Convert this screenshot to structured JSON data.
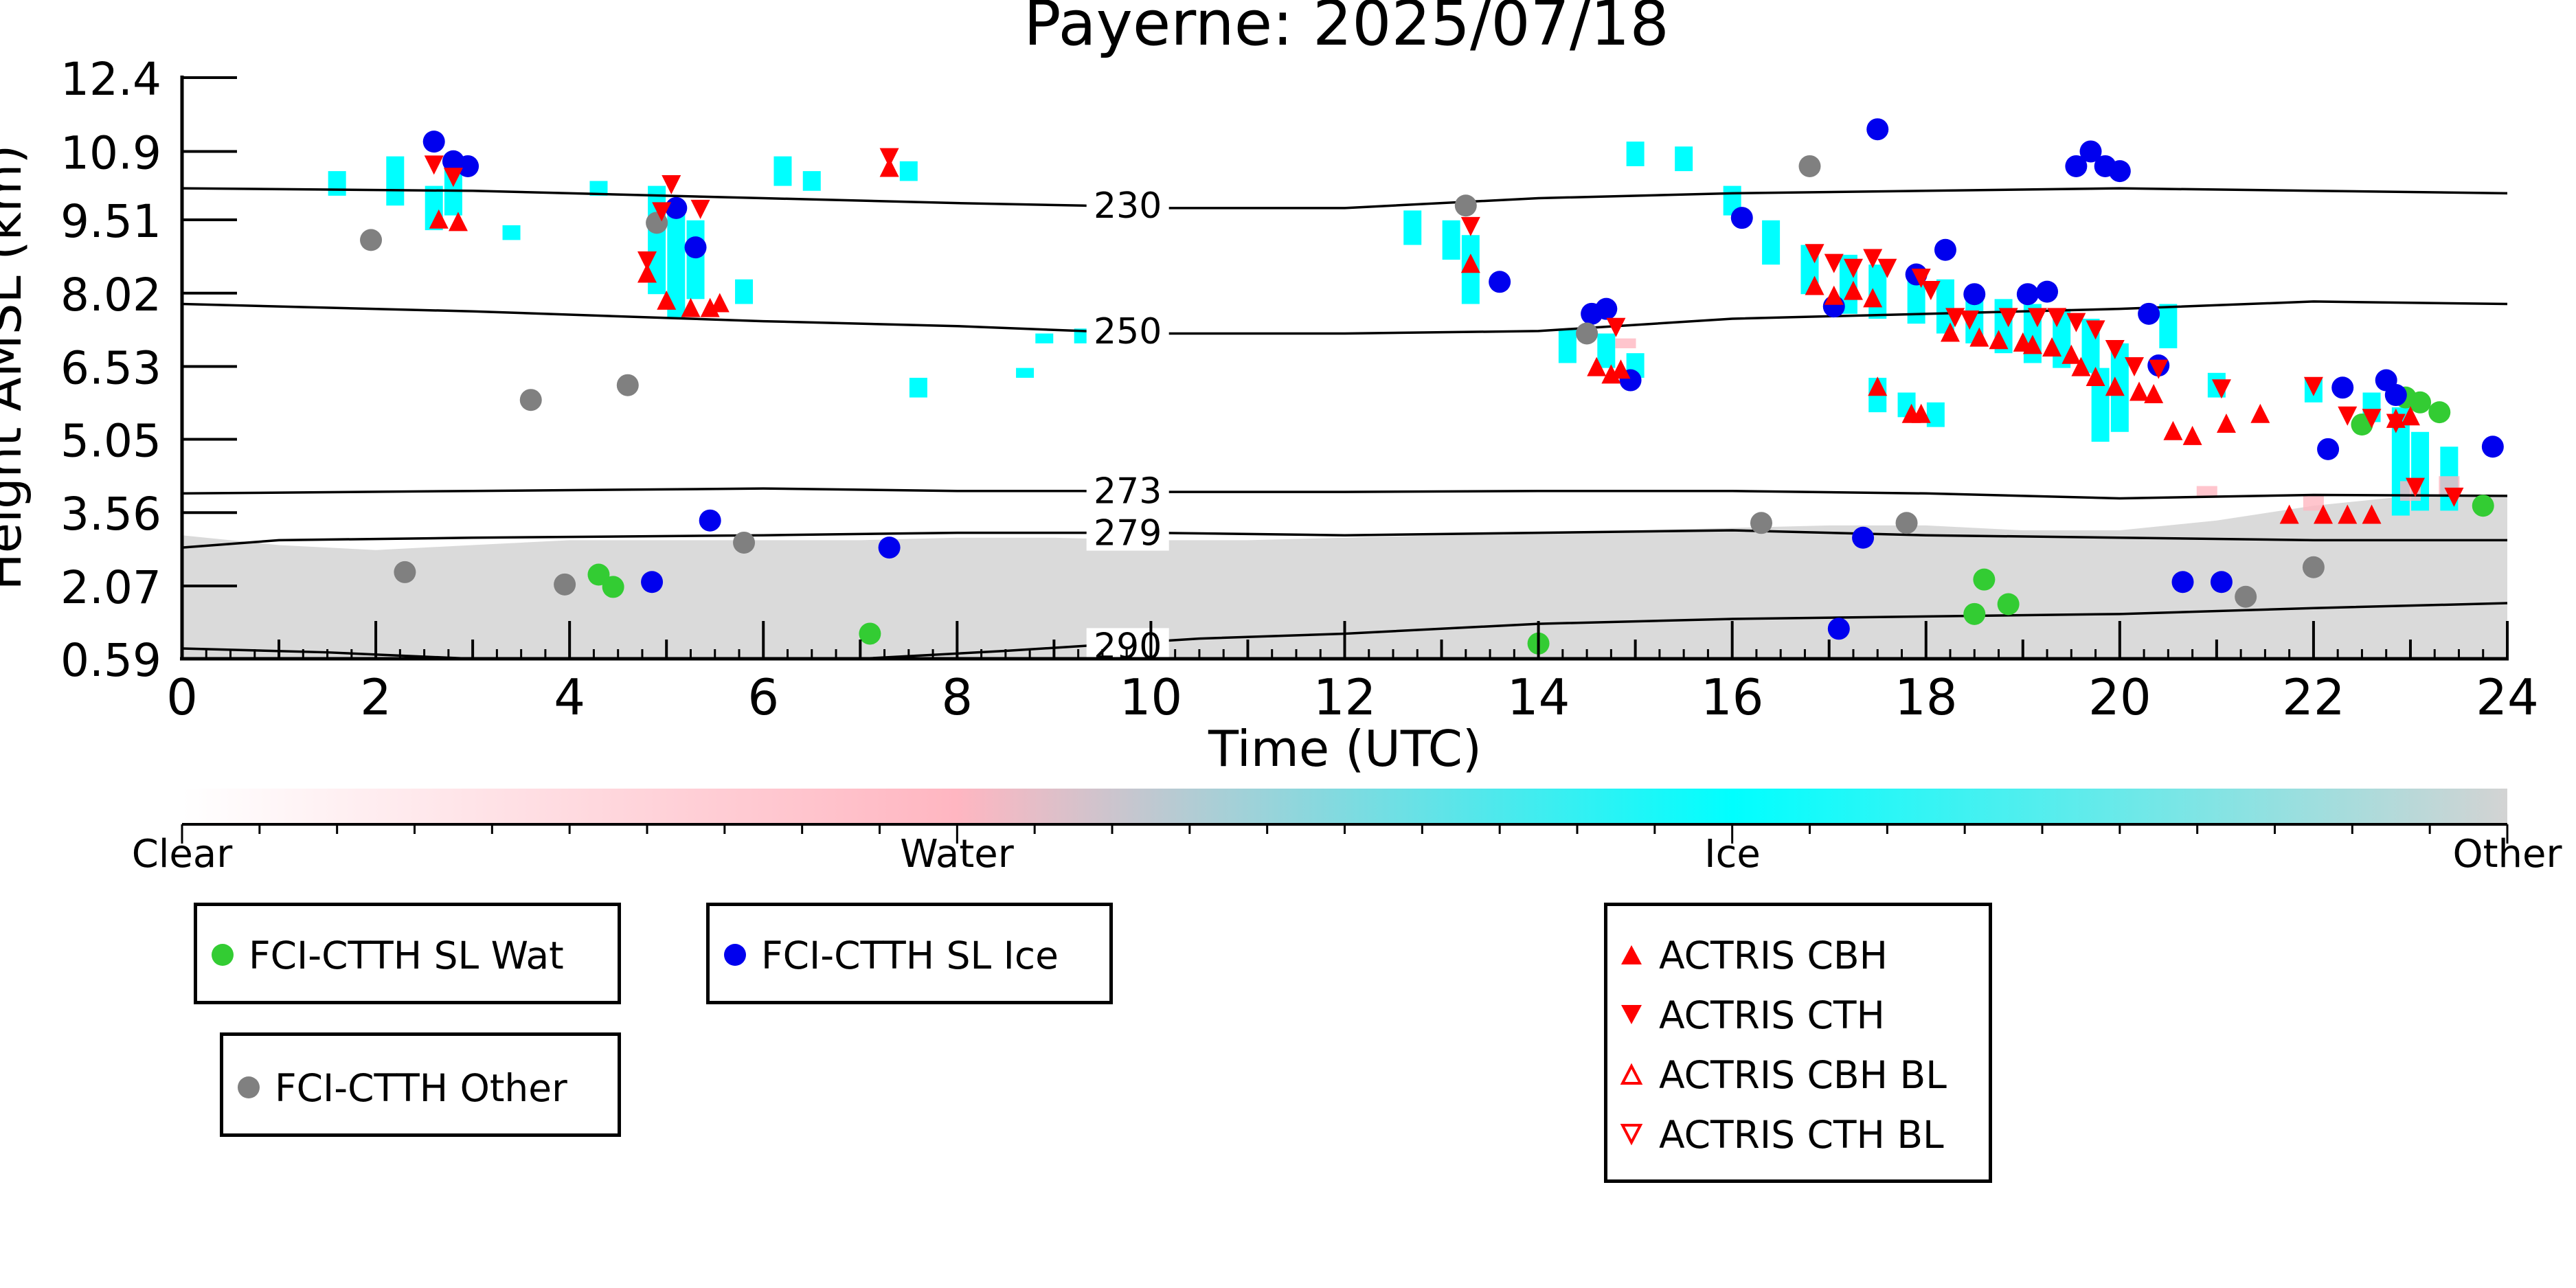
{
  "chart_data": {
    "type": "scatter",
    "title": "Payerne: 2025/07/18",
    "xlabel": "Time (UTC)",
    "ylabel": "Height AMSL (km)",
    "xlim": [
      0,
      24
    ],
    "ylim": [
      0.59,
      12.4
    ],
    "x_ticks": [
      "0",
      "2",
      "4",
      "6",
      "8",
      "10",
      "12",
      "14",
      "16",
      "18",
      "20",
      "22",
      "24"
    ],
    "y_ticks": [
      "12.4",
      "10.9",
      "9.51",
      "8.02",
      "6.53",
      "5.05",
      "3.56",
      "2.07",
      "0.59"
    ],
    "y_tick_values": [
      12.4,
      10.9,
      9.51,
      8.02,
      6.53,
      5.05,
      3.56,
      2.07,
      0.59
    ],
    "colorbar": {
      "labels": [
        "Clear",
        "Water",
        "Ice",
        "Other"
      ],
      "colors": [
        "#ffffff",
        "#ffb6c1",
        "#00ffff",
        "#d3d3d3"
      ]
    },
    "isotherms": [
      {
        "label": "230",
        "label_x": 9.3,
        "points": [
          [
            0,
            10.15
          ],
          [
            3,
            10.1
          ],
          [
            6,
            9.95
          ],
          [
            8,
            9.85
          ],
          [
            9.3,
            9.8
          ],
          [
            10,
            9.75
          ],
          [
            12,
            9.75
          ],
          [
            14,
            9.95
          ],
          [
            16,
            10.05
          ],
          [
            18,
            10.1
          ],
          [
            20,
            10.15
          ],
          [
            22,
            10.1
          ],
          [
            24,
            10.05
          ]
        ]
      },
      {
        "label": "250",
        "label_x": 9.3,
        "points": [
          [
            0,
            7.8
          ],
          [
            3,
            7.65
          ],
          [
            6,
            7.45
          ],
          [
            8,
            7.35
          ],
          [
            9.3,
            7.25
          ],
          [
            10,
            7.2
          ],
          [
            12,
            7.2
          ],
          [
            14,
            7.25
          ],
          [
            16,
            7.5
          ],
          [
            18,
            7.6
          ],
          [
            20,
            7.7
          ],
          [
            22,
            7.85
          ],
          [
            24,
            7.8
          ]
        ]
      },
      {
        "label": "273",
        "label_x": 9.3,
        "points": [
          [
            0,
            3.95
          ],
          [
            3,
            4.0
          ],
          [
            6,
            4.05
          ],
          [
            8,
            4.0
          ],
          [
            9.3,
            4.0
          ],
          [
            10,
            3.98
          ],
          [
            12,
            3.98
          ],
          [
            14,
            4.0
          ],
          [
            16,
            4.0
          ],
          [
            18,
            3.95
          ],
          [
            20,
            3.85
          ],
          [
            22,
            3.92
          ],
          [
            24,
            3.9
          ]
        ]
      },
      {
        "label": "279",
        "label_x": 9.3,
        "points": [
          [
            0,
            2.85
          ],
          [
            1,
            3.0
          ],
          [
            3,
            3.05
          ],
          [
            6,
            3.1
          ],
          [
            8,
            3.15
          ],
          [
            9.3,
            3.15
          ],
          [
            10,
            3.15
          ],
          [
            12,
            3.1
          ],
          [
            14,
            3.15
          ],
          [
            16,
            3.2
          ],
          [
            18,
            3.1
          ],
          [
            20,
            3.05
          ],
          [
            22,
            3.0
          ],
          [
            24,
            3.0
          ]
        ]
      },
      {
        "label": "290",
        "label_x": 9.3,
        "points": [
          [
            0,
            0.8
          ],
          [
            1.5,
            0.72
          ],
          [
            3,
            0.59
          ],
          [
            5,
            0.59
          ],
          [
            7,
            0.59
          ],
          [
            8.5,
            0.75
          ],
          [
            9.3,
            0.85
          ],
          [
            10.5,
            1.0
          ],
          [
            12,
            1.1
          ],
          [
            14,
            1.3
          ],
          [
            16,
            1.4
          ],
          [
            18,
            1.45
          ],
          [
            20,
            1.5
          ],
          [
            22,
            1.62
          ],
          [
            24,
            1.72
          ]
        ]
      }
    ],
    "radar": {
      "ice": [
        [
          1.6,
          10.5,
          10.0
        ],
        [
          2.2,
          10.8,
          9.8
        ],
        [
          2.8,
          10.6,
          9.6
        ],
        [
          2.6,
          10.2,
          9.3
        ],
        [
          3.4,
          9.4,
          9.1
        ],
        [
          4.3,
          10.3,
          10.0
        ],
        [
          4.9,
          10.2,
          8.0
        ],
        [
          5.1,
          9.8,
          7.5
        ],
        [
          5.3,
          9.5,
          7.9
        ],
        [
          5.8,
          8.3,
          7.8
        ],
        [
          6.2,
          10.8,
          10.2
        ],
        [
          6.5,
          10.5,
          10.1
        ],
        [
          7.5,
          10.7,
          10.3
        ],
        [
          7.6,
          6.3,
          5.9
        ],
        [
          8.7,
          6.5,
          6.3
        ],
        [
          8.9,
          7.2,
          7.0
        ],
        [
          9.3,
          7.3,
          7.0
        ],
        [
          12.7,
          9.7,
          9.0
        ],
        [
          13.1,
          9.5,
          8.7
        ],
        [
          13.3,
          9.2,
          7.8
        ],
        [
          14.3,
          7.3,
          6.6
        ],
        [
          14.7,
          7.2,
          6.5
        ],
        [
          15.0,
          6.8,
          6.3
        ],
        [
          15.0,
          11.1,
          10.6
        ],
        [
          15.5,
          11.0,
          10.5
        ],
        [
          16.0,
          10.2,
          9.6
        ],
        [
          16.4,
          9.5,
          8.6
        ],
        [
          16.8,
          9.0,
          8.0
        ],
        [
          17.2,
          8.8,
          7.6
        ],
        [
          17.5,
          8.6,
          7.5
        ],
        [
          17.9,
          8.5,
          7.4
        ],
        [
          18.2,
          8.3,
          7.2
        ],
        [
          18.5,
          8.0,
          7.0
        ],
        [
          18.8,
          7.9,
          6.8
        ],
        [
          19.1,
          7.8,
          6.6
        ],
        [
          19.4,
          7.7,
          6.5
        ],
        [
          19.7,
          7.5,
          6.4
        ],
        [
          20.0,
          7.0,
          5.2
        ],
        [
          19.8,
          6.5,
          5.0
        ],
        [
          17.5,
          6.3,
          5.6
        ],
        [
          17.8,
          6.0,
          5.5
        ],
        [
          18.1,
          5.8,
          5.3
        ],
        [
          20.5,
          7.8,
          6.9
        ],
        [
          21.0,
          6.4,
          5.9
        ],
        [
          22.0,
          6.3,
          5.8
        ],
        [
          22.6,
          6.0,
          5.4
        ],
        [
          22.9,
          5.7,
          3.5
        ],
        [
          23.1,
          5.2,
          3.6
        ],
        [
          23.4,
          4.9,
          3.6
        ]
      ],
      "water": [
        [
          14.9,
          7.1,
          6.9
        ],
        [
          23.0,
          4.2,
          3.8
        ],
        [
          23.4,
          4.3,
          3.9
        ],
        [
          22.0,
          3.9,
          3.6
        ],
        [
          20.9,
          4.1,
          3.9
        ]
      ],
      "other_low": [
        [
          0,
          3.1
        ],
        [
          1,
          2.9
        ],
        [
          2,
          2.8
        ],
        [
          3,
          2.9
        ],
        [
          4,
          3.0
        ],
        [
          5,
          3.0
        ],
        [
          6,
          3.0
        ],
        [
          7,
          3.0
        ],
        [
          8,
          3.05
        ],
        [
          9,
          3.05
        ],
        [
          10,
          3.0
        ],
        [
          11,
          3.0
        ],
        [
          12,
          3.05
        ],
        [
          13,
          3.1
        ],
        [
          14,
          3.15
        ],
        [
          15,
          3.2
        ],
        [
          16,
          3.25
        ],
        [
          17,
          3.3
        ],
        [
          18,
          3.3
        ],
        [
          19,
          3.2
        ],
        [
          20,
          3.2
        ],
        [
          21,
          3.4
        ],
        [
          22,
          3.7
        ],
        [
          23,
          3.9
        ],
        [
          24,
          3.9
        ]
      ]
    },
    "series": [
      {
        "name": "FCI-CTTH SL Wat",
        "color": "#33cc33",
        "marker": "circle",
        "points": [
          [
            4.3,
            2.3
          ],
          [
            4.45,
            2.05
          ],
          [
            7.1,
            1.1
          ],
          [
            14.0,
            0.9
          ],
          [
            18.5,
            1.5
          ],
          [
            18.6,
            2.2
          ],
          [
            18.85,
            1.7
          ],
          [
            22.5,
            5.35
          ],
          [
            22.95,
            5.9
          ],
          [
            23.1,
            5.8
          ],
          [
            23.3,
            5.6
          ],
          [
            23.75,
            3.7
          ]
        ]
      },
      {
        "name": "FCI-CTTH SL Ice",
        "color": "#0000ee",
        "marker": "circle",
        "points": [
          [
            2.6,
            11.1
          ],
          [
            2.8,
            10.7
          ],
          [
            2.95,
            10.6
          ],
          [
            4.85,
            2.15
          ],
          [
            5.1,
            9.75
          ],
          [
            5.3,
            8.95
          ],
          [
            5.45,
            3.4
          ],
          [
            7.3,
            2.85
          ],
          [
            13.6,
            8.25
          ],
          [
            14.55,
            7.6
          ],
          [
            14.7,
            7.7
          ],
          [
            14.95,
            6.25
          ],
          [
            16.1,
            9.55
          ],
          [
            17.05,
            7.75
          ],
          [
            17.1,
            1.2
          ],
          [
            17.35,
            3.05
          ],
          [
            17.5,
            11.35
          ],
          [
            17.9,
            8.4
          ],
          [
            18.2,
            8.9
          ],
          [
            18.5,
            8.0
          ],
          [
            19.05,
            8.0
          ],
          [
            19.25,
            8.05
          ],
          [
            19.55,
            10.6
          ],
          [
            19.7,
            10.9
          ],
          [
            19.85,
            10.6
          ],
          [
            20.0,
            10.5
          ],
          [
            20.3,
            7.6
          ],
          [
            20.4,
            6.55
          ],
          [
            20.65,
            2.15
          ],
          [
            21.05,
            2.15
          ],
          [
            22.15,
            4.85
          ],
          [
            22.3,
            6.1
          ],
          [
            22.75,
            6.25
          ],
          [
            22.85,
            5.95
          ],
          [
            23.85,
            4.9
          ]
        ]
      },
      {
        "name": "FCI-CTTH Other",
        "color": "#808080",
        "marker": "circle",
        "points": [
          [
            1.95,
            9.1
          ],
          [
            2.3,
            2.35
          ],
          [
            3.6,
            5.85
          ],
          [
            3.95,
            2.1
          ],
          [
            4.6,
            6.15
          ],
          [
            4.9,
            9.45
          ],
          [
            5.8,
            2.95
          ],
          [
            13.25,
            9.8
          ],
          [
            14.5,
            7.2
          ],
          [
            16.3,
            3.35
          ],
          [
            16.8,
            10.6
          ],
          [
            17.8,
            3.35
          ],
          [
            21.3,
            1.85
          ],
          [
            22.0,
            2.45
          ]
        ]
      },
      {
        "name": "ACTRIS CBH",
        "color": "#ff0000",
        "marker": "triangle-up",
        "points": [
          [
            2.65,
            9.5
          ],
          [
            2.85,
            9.45
          ],
          [
            4.8,
            8.4
          ],
          [
            5.0,
            7.85
          ],
          [
            5.25,
            7.7
          ],
          [
            5.45,
            7.7
          ],
          [
            5.55,
            7.8
          ],
          [
            7.3,
            10.55
          ],
          [
            13.3,
            8.6
          ],
          [
            14.6,
            6.5
          ],
          [
            14.75,
            6.35
          ],
          [
            14.85,
            6.45
          ],
          [
            16.85,
            8.15
          ],
          [
            17.05,
            7.95
          ],
          [
            17.25,
            8.05
          ],
          [
            17.45,
            7.9
          ],
          [
            17.5,
            6.1
          ],
          [
            17.85,
            5.55
          ],
          [
            17.95,
            5.55
          ],
          [
            18.25,
            7.2
          ],
          [
            18.55,
            7.1
          ],
          [
            18.75,
            7.05
          ],
          [
            19.0,
            7.0
          ],
          [
            19.1,
            6.95
          ],
          [
            19.3,
            6.9
          ],
          [
            19.5,
            6.75
          ],
          [
            19.6,
            6.5
          ],
          [
            19.75,
            6.3
          ],
          [
            19.95,
            6.1
          ],
          [
            20.2,
            6.0
          ],
          [
            20.35,
            5.95
          ],
          [
            20.55,
            5.2
          ],
          [
            20.75,
            5.1
          ],
          [
            21.1,
            5.35
          ],
          [
            21.45,
            5.55
          ],
          [
            21.75,
            3.5
          ],
          [
            22.1,
            3.5
          ],
          [
            22.35,
            3.5
          ],
          [
            22.6,
            3.5
          ],
          [
            22.85,
            5.45
          ],
          [
            23.0,
            5.5
          ]
        ]
      },
      {
        "name": "ACTRIS CTH",
        "color": "#ff0000",
        "marker": "triangle-down",
        "points": [
          [
            2.6,
            10.65
          ],
          [
            2.8,
            10.4
          ],
          [
            4.8,
            8.7
          ],
          [
            4.95,
            9.7
          ],
          [
            5.05,
            10.25
          ],
          [
            5.35,
            9.75
          ],
          [
            7.3,
            10.8
          ],
          [
            13.3,
            9.4
          ],
          [
            14.8,
            7.35
          ],
          [
            16.85,
            8.85
          ],
          [
            17.05,
            8.65
          ],
          [
            17.25,
            8.55
          ],
          [
            17.45,
            8.75
          ],
          [
            17.6,
            8.55
          ],
          [
            17.95,
            8.35
          ],
          [
            18.05,
            8.1
          ],
          [
            18.3,
            7.55
          ],
          [
            18.45,
            7.5
          ],
          [
            18.85,
            7.55
          ],
          [
            19.15,
            7.55
          ],
          [
            19.35,
            7.55
          ],
          [
            19.55,
            7.45
          ],
          [
            19.75,
            7.3
          ],
          [
            19.95,
            6.9
          ],
          [
            20.15,
            6.55
          ],
          [
            20.4,
            6.5
          ],
          [
            21.05,
            6.1
          ],
          [
            22.0,
            6.15
          ],
          [
            22.35,
            5.55
          ],
          [
            22.6,
            5.5
          ],
          [
            22.85,
            5.4
          ],
          [
            23.05,
            4.1
          ],
          [
            23.45,
            3.9
          ]
        ]
      },
      {
        "name": "ACTRIS CBH BL",
        "color": "#ff0000",
        "marker": "triangle-up-open",
        "points": []
      },
      {
        "name": "ACTRIS CTH BL",
        "color": "#ff0000",
        "marker": "triangle-down-open",
        "points": []
      }
    ]
  },
  "legends": {
    "wat": "FCI-CTTH SL Wat",
    "ice": "FCI-CTTH SL Ice",
    "other": "FCI-CTTH Other",
    "cbh": "ACTRIS CBH",
    "cth": "ACTRIS CTH",
    "cbh_bl": "ACTRIS CBH BL",
    "cth_bl": "ACTRIS CTH BL"
  }
}
